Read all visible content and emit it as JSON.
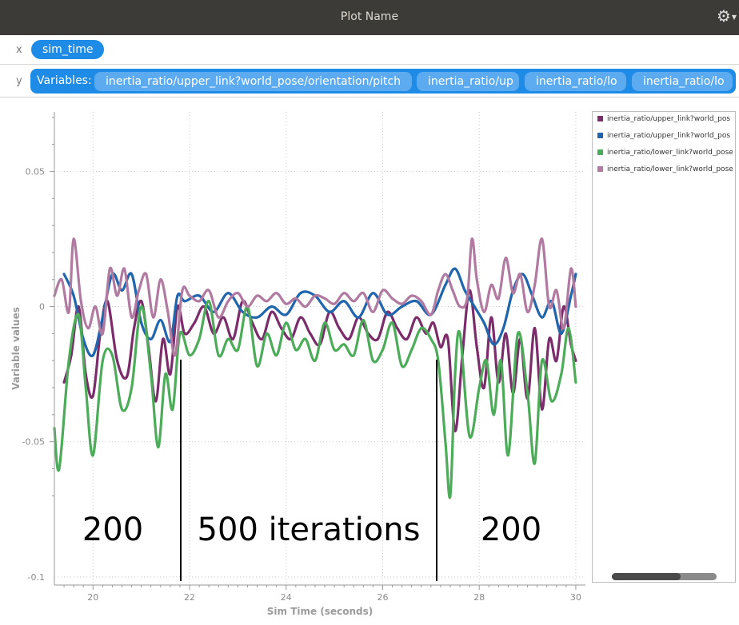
{
  "window": {
    "title": "Plot Name",
    "settings_icon": "gear-icon"
  },
  "x_row": {
    "axis_label": "x",
    "variable": "sim_time"
  },
  "y_row": {
    "axis_label": "y",
    "variables_label": "Variables:",
    "variables": [
      "inertia_ratio/upper_link?world_pose/orientation/pitch",
      "inertia_ratio/up",
      "inertia_ratio/lo",
      "inertia_ratio/lo"
    ]
  },
  "chart_data": {
    "type": "line",
    "xlabel": "Sim Time (seconds)",
    "ylabel": "Variable values",
    "xlim": [
      19.2,
      30.2
    ],
    "ylim": [
      -0.103,
      0.072
    ],
    "xticks": [
      20,
      22,
      24,
      26,
      28,
      30
    ],
    "yticks": [
      0.05,
      0,
      -0.05,
      -0.1
    ],
    "ytick_labels": [
      "0.05",
      "0",
      "-0.05",
      "-0.1"
    ],
    "grid": true,
    "legend_position": "right",
    "series": [
      {
        "name": "inertia_ratio/upper_link?world_pos",
        "color": "#7b2d6b",
        "x": [
          19.4,
          19.55,
          19.7,
          19.85,
          20.0,
          20.15,
          20.3,
          20.5,
          20.7,
          20.85,
          21.0,
          21.15,
          21.3,
          21.45,
          21.6,
          21.75,
          21.9,
          22.1,
          22.3,
          22.5,
          22.7,
          22.9,
          23.1,
          23.3,
          23.5,
          23.7,
          23.9,
          24.1,
          24.3,
          24.5,
          24.7,
          24.9,
          25.1,
          25.3,
          25.5,
          25.7,
          25.9,
          26.1,
          26.3,
          26.5,
          26.7,
          26.9,
          27.05,
          27.2,
          27.35,
          27.5,
          27.65,
          27.8,
          27.95,
          28.1,
          28.25,
          28.4,
          28.55,
          28.7,
          28.85,
          29.0,
          29.15,
          29.3,
          29.45,
          29.6,
          29.75,
          29.9,
          30.0
        ],
        "y": [
          -0.028,
          -0.018,
          0.0,
          -0.025,
          -0.033,
          -0.01,
          0.002,
          -0.02,
          -0.026,
          -0.008,
          0.002,
          -0.015,
          -0.035,
          -0.012,
          -0.025,
          0.0,
          -0.01,
          -0.006,
          0.0,
          -0.01,
          -0.004,
          -0.012,
          0.002,
          -0.006,
          -0.012,
          -0.002,
          -0.008,
          -0.012,
          -0.004,
          -0.01,
          -0.014,
          -0.002,
          -0.008,
          -0.012,
          -0.004,
          -0.01,
          -0.012,
          -0.002,
          -0.008,
          -0.012,
          -0.004,
          -0.01,
          -0.006,
          -0.015,
          -0.012,
          -0.046,
          -0.018,
          0.006,
          -0.015,
          -0.03,
          -0.004,
          -0.028,
          -0.01,
          -0.032,
          -0.012,
          -0.034,
          -0.008,
          -0.038,
          -0.012,
          -0.02,
          0.0,
          -0.014,
          -0.02
        ]
      },
      {
        "name": "inertia_ratio/upper_link?world_pos",
        "color": "#2166ac",
        "x": [
          19.4,
          19.6,
          19.8,
          20.0,
          20.2,
          20.4,
          20.6,
          20.8,
          21.0,
          21.2,
          21.4,
          21.6,
          21.75,
          21.9,
          22.2,
          22.5,
          22.8,
          23.1,
          23.4,
          23.7,
          24.0,
          24.3,
          24.6,
          24.9,
          25.2,
          25.5,
          25.8,
          26.1,
          26.4,
          26.7,
          27.0,
          27.3,
          27.5,
          27.7,
          27.9,
          28.1,
          28.3,
          28.5,
          28.7,
          28.9,
          29.1,
          29.3,
          29.5,
          29.7,
          29.9,
          30.0
        ],
        "y": [
          0.012,
          0.004,
          -0.012,
          -0.018,
          -0.004,
          0.012,
          0.006,
          0.012,
          -0.006,
          -0.012,
          -0.005,
          -0.013,
          0.004,
          0.002,
          0.004,
          -0.002,
          0.005,
          -0.002,
          -0.004,
          0.0,
          -0.003,
          0.005,
          0.004,
          -0.002,
          0.002,
          -0.004,
          0.005,
          -0.003,
          0.0,
          0.002,
          -0.003,
          0.008,
          0.014,
          0.006,
          0.0,
          -0.006,
          -0.014,
          -0.008,
          0.006,
          0.012,
          0.004,
          -0.004,
          0.002,
          -0.01,
          0.004,
          0.012
        ]
      },
      {
        "name": "inertia_ratio/lower_link?world_pose",
        "color": "#4dac5a",
        "x": [
          19.2,
          19.3,
          19.5,
          19.7,
          19.85,
          20.0,
          20.2,
          20.4,
          20.6,
          20.8,
          21.0,
          21.2,
          21.35,
          21.5,
          21.65,
          21.8,
          22.0,
          22.2,
          22.4,
          22.6,
          22.8,
          23.0,
          23.2,
          23.4,
          23.6,
          23.8,
          24.0,
          24.2,
          24.4,
          24.6,
          24.8,
          25.0,
          25.2,
          25.4,
          25.6,
          25.8,
          26.0,
          26.2,
          26.4,
          26.6,
          26.8,
          27.0,
          27.15,
          27.3,
          27.4,
          27.5,
          27.6,
          27.8,
          28.0,
          28.15,
          28.3,
          28.45,
          28.6,
          28.8,
          29.0,
          29.15,
          29.3,
          29.5,
          29.7,
          29.85,
          30.0
        ],
        "y": [
          -0.045,
          -0.06,
          -0.02,
          -0.003,
          -0.03,
          -0.055,
          -0.02,
          -0.018,
          -0.038,
          -0.03,
          0.0,
          -0.025,
          -0.052,
          -0.025,
          -0.038,
          -0.01,
          -0.018,
          -0.012,
          0.002,
          -0.018,
          -0.012,
          -0.016,
          0.0,
          -0.022,
          -0.01,
          -0.018,
          -0.006,
          -0.016,
          -0.012,
          -0.02,
          -0.006,
          -0.016,
          -0.014,
          -0.018,
          -0.005,
          -0.02,
          -0.016,
          -0.006,
          -0.022,
          -0.016,
          -0.008,
          -0.012,
          -0.02,
          -0.05,
          -0.07,
          -0.025,
          -0.01,
          -0.048,
          -0.03,
          -0.02,
          -0.04,
          -0.02,
          -0.055,
          -0.01,
          -0.032,
          -0.058,
          -0.02,
          -0.035,
          -0.025,
          -0.008,
          -0.028
        ]
      },
      {
        "name": "inertia_ratio/lower_link?world_pose",
        "color": "#b07aa1",
        "x": [
          19.2,
          19.35,
          19.5,
          19.6,
          19.75,
          19.9,
          20.05,
          20.2,
          20.35,
          20.5,
          20.65,
          20.8,
          20.95,
          21.1,
          21.25,
          21.4,
          21.55,
          21.7,
          21.85,
          22.0,
          22.2,
          22.4,
          22.6,
          22.8,
          23.0,
          23.2,
          23.4,
          23.6,
          23.8,
          24.0,
          24.2,
          24.4,
          24.6,
          24.8,
          25.0,
          25.2,
          25.4,
          25.6,
          25.8,
          26.0,
          26.2,
          26.4,
          26.6,
          26.8,
          27.0,
          27.15,
          27.3,
          27.45,
          27.6,
          27.75,
          27.85,
          27.95,
          28.1,
          28.25,
          28.4,
          28.55,
          28.7,
          28.85,
          29.0,
          29.15,
          29.3,
          29.45,
          29.6,
          29.75,
          29.9,
          30.0
        ],
        "y": [
          0.004,
          0.01,
          -0.002,
          0.025,
          0.002,
          -0.008,
          0.0,
          -0.01,
          0.014,
          0.004,
          0.014,
          -0.004,
          0.006,
          0.012,
          -0.004,
          0.01,
          -0.002,
          -0.018,
          0.006,
          0.004,
          0.002,
          0.006,
          -0.004,
          0.002,
          0.005,
          0.0,
          0.004,
          0.002,
          0.005,
          0.001,
          0.003,
          0.0,
          0.004,
          0.003,
          0.001,
          0.005,
          0.002,
          0.005,
          -0.002,
          0.006,
          0.003,
          0.001,
          0.004,
          0.002,
          -0.003,
          0.006,
          0.012,
          0.006,
          0.0,
          0.003,
          0.025,
          0.01,
          -0.002,
          0.008,
          0.003,
          0.018,
          0.005,
          0.012,
          -0.002,
          0.008,
          0.025,
          0.0,
          0.006,
          -0.008,
          0.014,
          0.0
        ]
      }
    ],
    "annotations": [
      "200",
      "500 iterations",
      "200"
    ]
  }
}
